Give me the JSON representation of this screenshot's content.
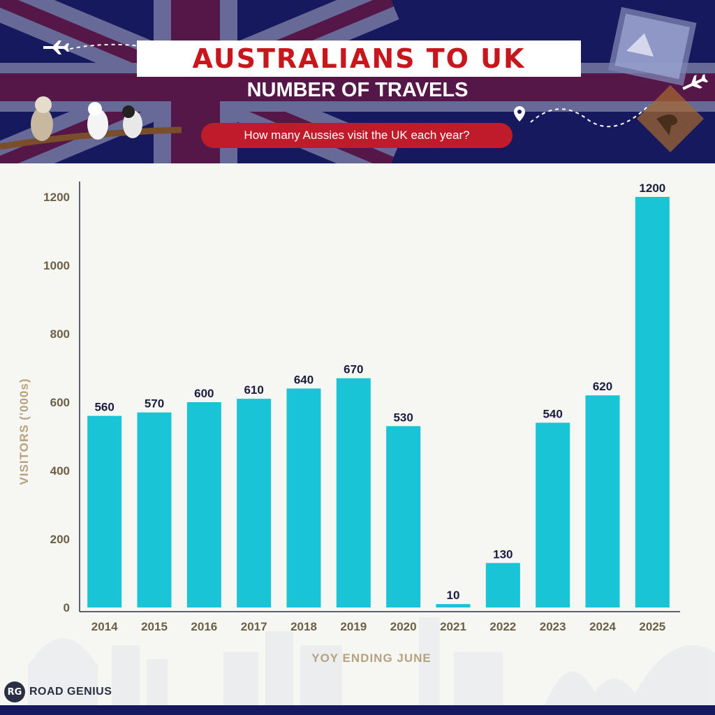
{
  "header": {
    "title": "AUSTRALIANS TO UK",
    "subtitle": "NUMBER OF TRAVELS",
    "question": "How many Aussies visit the UK each year?"
  },
  "brand": {
    "logo": "RG",
    "name": "ROAD GENIUS"
  },
  "colors": {
    "bar": "#19c4d6",
    "header_bg": "#16195e",
    "title_red": "#c8161d",
    "pill_red": "#c01b2a",
    "axis_title": "#b6a27e"
  },
  "icons": [
    "union-jack-flag",
    "airplane-icon",
    "kookaburra-bird",
    "cockatoo-bird",
    "magpie-bird",
    "postage-stamp",
    "location-pin-icon",
    "kangaroo-sign",
    "city-skyline"
  ],
  "chart_data": {
    "type": "bar",
    "categories": [
      "2014",
      "2015",
      "2016",
      "2017",
      "2018",
      "2019",
      "2020",
      "2021",
      "2022",
      "2023",
      "2024",
      "2025"
    ],
    "values": [
      560,
      570,
      600,
      610,
      640,
      670,
      530,
      10,
      130,
      540,
      620,
      1200
    ],
    "data_labels": [
      "560",
      "570",
      "600",
      "610",
      "640",
      "670",
      "530",
      "10",
      "130",
      "540",
      "620",
      "1200"
    ],
    "yticks": [
      "0",
      "200",
      "400",
      "600",
      "800",
      "1000",
      "1200"
    ],
    "ytick_values": [
      0,
      200,
      400,
      600,
      800,
      1000,
      1200
    ],
    "xlabel": "YOY ENDING JUNE",
    "ylabel": "VISITORS ('000s)",
    "ylim": [
      0,
      1200
    ],
    "grid": false,
    "legend": "none"
  }
}
